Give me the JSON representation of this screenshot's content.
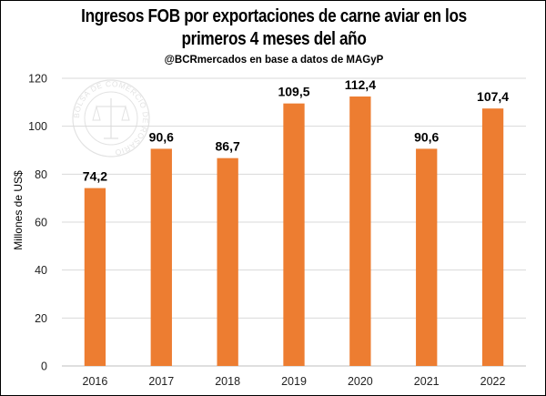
{
  "chart_data": {
    "type": "bar",
    "title_line1": "Ingresos FOB por exportaciones de carne aviar en los",
    "title_line2": "primeros 4 meses del año",
    "subtitle": "@BCRmercados en base a datos de MAGyP",
    "xlabel": "",
    "ylabel": "Millones de US$",
    "categories": [
      "2016",
      "2017",
      "2018",
      "2019",
      "2020",
      "2021",
      "2022"
    ],
    "values": [
      74.2,
      90.6,
      86.7,
      109.5,
      112.4,
      90.6,
      107.4
    ],
    "value_labels": [
      "74,2",
      "90,6",
      "86,7",
      "109,5",
      "112,4",
      "90,6",
      "107,4"
    ],
    "ylim": [
      0,
      120
    ],
    "yticks": [
      0,
      20,
      40,
      60,
      80,
      100,
      120
    ],
    "grid": "horizontal",
    "legend": "none",
    "bar_color": "#ED7D31",
    "grid_color": "#D9D9D9",
    "watermark": "BOLSA DE COMERCIO DE ROSARIO"
  }
}
